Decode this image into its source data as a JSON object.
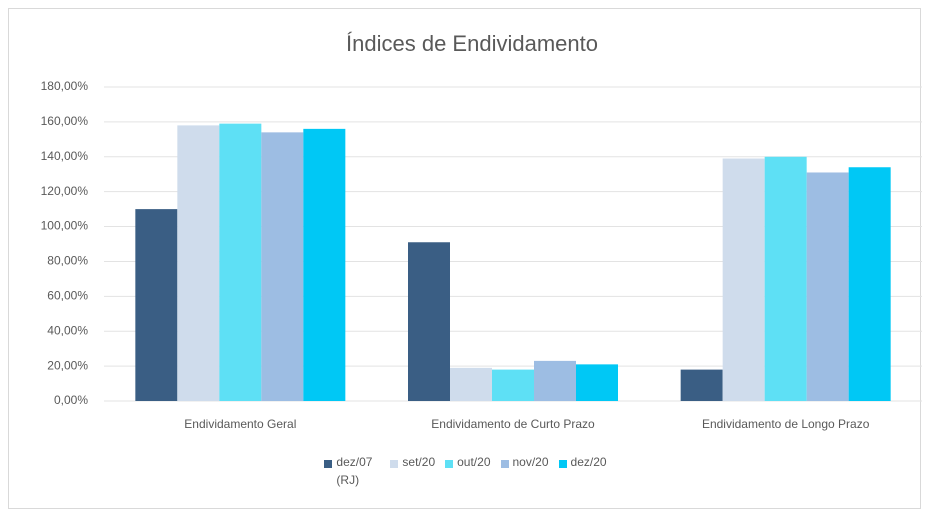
{
  "chart_data": {
    "type": "bar",
    "title": "Índices de Endividamento",
    "categories": [
      "Endividamento Geral",
      "Endividamento de Curto Prazo",
      "Endividamento de Longo Prazo"
    ],
    "series": [
      {
        "name": "dez/07 (RJ)",
        "color": "#3a5e84",
        "values": [
          110,
          91,
          18
        ]
      },
      {
        "name": "set/20",
        "color": "#cfdcec",
        "values": [
          158,
          19,
          139
        ]
      },
      {
        "name": "out/20",
        "color": "#5ee0f5",
        "values": [
          159,
          18,
          140
        ]
      },
      {
        "name": "nov/20",
        "color": "#9dbde3",
        "values": [
          154,
          23,
          131
        ]
      },
      {
        "name": "dez/20",
        "color": "#00c8f5",
        "values": [
          156,
          21,
          134
        ]
      }
    ],
    "ylim": [
      0,
      180
    ],
    "yticks": [
      {
        "value": 0,
        "label": "0,00%"
      },
      {
        "value": 20,
        "label": "20,00%"
      },
      {
        "value": 40,
        "label": "40,00%"
      },
      {
        "value": 60,
        "label": "60,00%"
      },
      {
        "value": 80,
        "label": "80,00%"
      },
      {
        "value": 100,
        "label": "100,00%"
      },
      {
        "value": 120,
        "label": "120,00%"
      },
      {
        "value": 140,
        "label": "140,00%"
      },
      {
        "value": 160,
        "label": "160,00%"
      },
      {
        "value": 180,
        "label": "180,00%"
      }
    ],
    "grid": true,
    "legend": "bottom"
  }
}
